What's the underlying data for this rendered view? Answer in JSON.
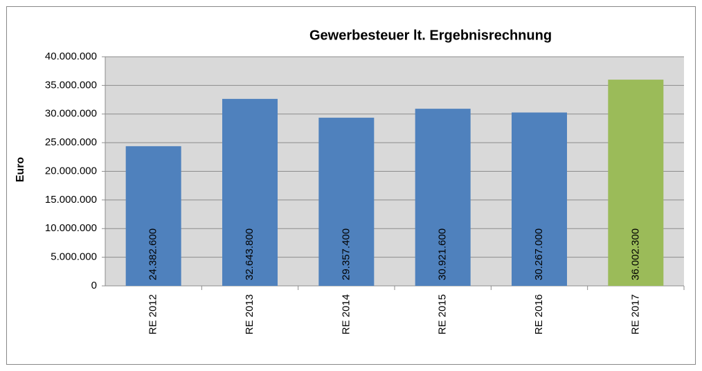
{
  "chart_data": {
    "type": "bar",
    "title": "Gewerbesteuer  lt. Ergebnisrechnung",
    "y_label": "Euro",
    "categories": [
      "RE 2012",
      "RE 2013",
      "RE 2014",
      "RE 2015",
      "RE 2016",
      "RE 2017"
    ],
    "values": [
      24382600,
      32643800,
      29357400,
      30921600,
      30267000,
      36002300
    ],
    "value_labels": [
      "24.382.600",
      "32.643.800",
      "29.357.400",
      "30.921.600",
      "30.267.000",
      "36.002.300"
    ],
    "colors": [
      "#4f81bd",
      "#4f81bd",
      "#4f81bd",
      "#4f81bd",
      "#4f81bd",
      "#9bbb59"
    ],
    "ylim": [
      0,
      40000000
    ],
    "yticks": [
      {
        "value": 0,
        "label": "0"
      },
      {
        "value": 5000000,
        "label": "5.000.000"
      },
      {
        "value": 10000000,
        "label": "10.000.000"
      },
      {
        "value": 15000000,
        "label": "15.000.000"
      },
      {
        "value": 20000000,
        "label": "20.000.000"
      },
      {
        "value": 25000000,
        "label": "25.000.000"
      },
      {
        "value": 30000000,
        "label": "30.000.000"
      },
      {
        "value": 35000000,
        "label": "35.000.000"
      },
      {
        "value": 40000000,
        "label": "40.000.000"
      }
    ],
    "grid": true
  }
}
